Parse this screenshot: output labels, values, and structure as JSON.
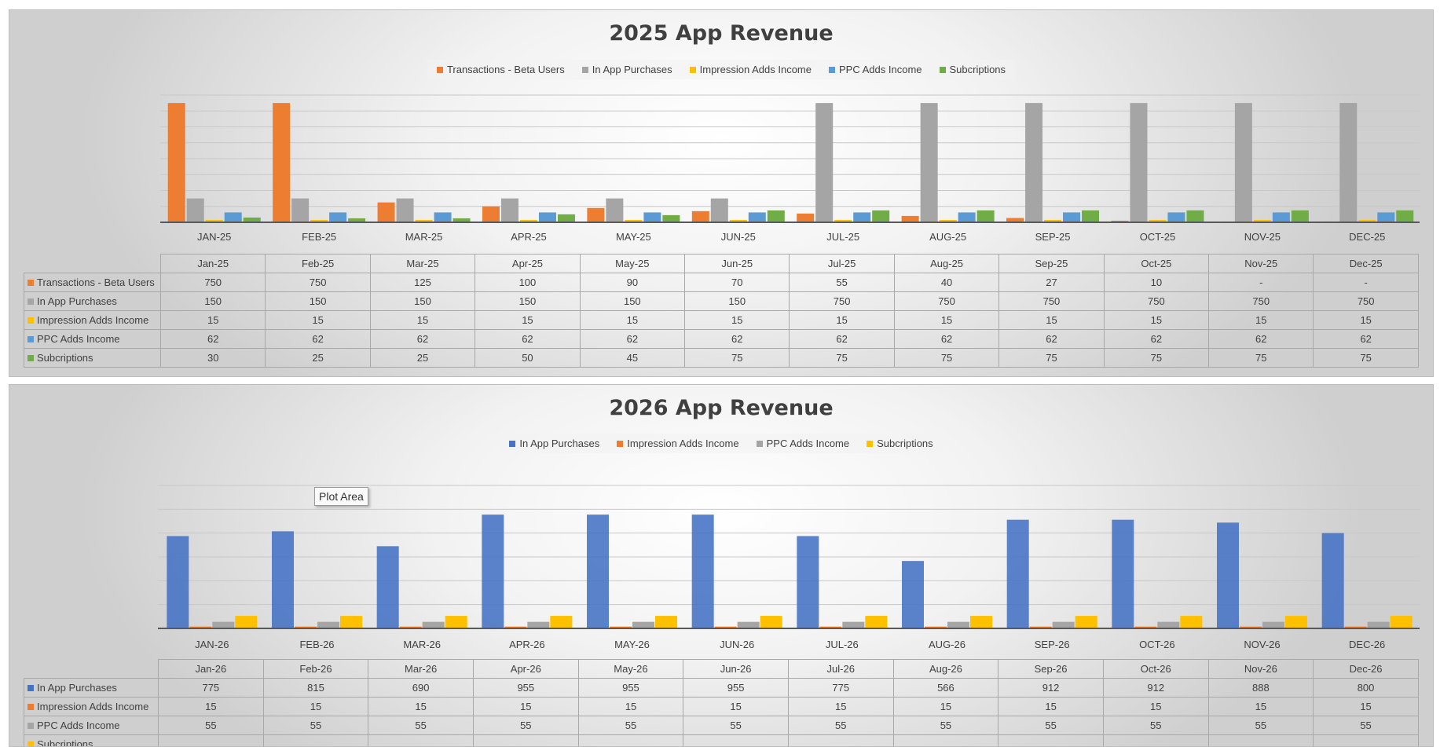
{
  "chart_data": [
    {
      "type": "bar",
      "title": "2025 App Revenue",
      "categories": [
        "JAN-25",
        "FEB-25",
        "MAR-25",
        "APR-25",
        "MAY-25",
        "JUN-25",
        "JUL-25",
        "AUG-25",
        "SEP-25",
        "OCT-25",
        "NOV-25",
        "DEC-25"
      ],
      "table_headers": [
        "Jan-25",
        "Feb-25",
        "Mar-25",
        "Apr-25",
        "May-25",
        "Jun-25",
        "Jul-25",
        "Aug-25",
        "Sep-25",
        "Oct-25",
        "Nov-25",
        "Dec-25"
      ],
      "ylim": [
        0,
        800
      ],
      "grid": true,
      "legend_position": "top",
      "series": [
        {
          "name": "Transactions - Beta Users",
          "color": "#ed7d31",
          "values": [
            750,
            750,
            125,
            100,
            90,
            70,
            55,
            40,
            27,
            10,
            null,
            null
          ],
          "labels": [
            "750",
            "750",
            "125",
            "100",
            "90",
            "70",
            "55",
            "40",
            "27",
            "10",
            "-",
            "-"
          ]
        },
        {
          "name": "In App Purchases",
          "color": "#a5a5a5",
          "values": [
            150,
            150,
            150,
            150,
            150,
            150,
            750,
            750,
            750,
            750,
            750,
            750
          ],
          "labels": [
            "150",
            "150",
            "150",
            "150",
            "150",
            "150",
            "750",
            "750",
            "750",
            "750",
            "750",
            "750"
          ]
        },
        {
          "name": "Impression Adds Income",
          "color": "#ffc000",
          "values": [
            15,
            15,
            15,
            15,
            15,
            15,
            15,
            15,
            15,
            15,
            15,
            15
          ],
          "labels": [
            "15",
            "15",
            "15",
            "15",
            "15",
            "15",
            "15",
            "15",
            "15",
            "15",
            "15",
            "15"
          ]
        },
        {
          "name": "PPC Adds Income",
          "color": "#5b9bd5",
          "values": [
            62,
            62,
            62,
            62,
            62,
            62,
            62,
            62,
            62,
            62,
            62,
            62
          ],
          "labels": [
            "62",
            "62",
            "62",
            "62",
            "62",
            "62",
            "62",
            "62",
            "62",
            "62",
            "62",
            "62"
          ]
        },
        {
          "name": "Subcriptions",
          "color": "#70ad47",
          "values": [
            30,
            25,
            25,
            50,
            45,
            75,
            75,
            75,
            75,
            75,
            75,
            75
          ],
          "labels": [
            "30",
            "25",
            "25",
            "50",
            "45",
            "75",
            "75",
            "75",
            "75",
            "75",
            "75",
            "75"
          ]
        }
      ]
    },
    {
      "type": "bar",
      "title": "2026 App Revenue",
      "categories": [
        "JAN-26",
        "FEB-26",
        "MAR-26",
        "APR-26",
        "MAY-26",
        "JUN-26",
        "JUL-26",
        "AUG-26",
        "SEP-26",
        "OCT-26",
        "NOV-26",
        "DEC-26"
      ],
      "table_headers": [
        "Jan-26",
        "Feb-26",
        "Mar-26",
        "Apr-26",
        "May-26",
        "Jun-26",
        "Jul-26",
        "Aug-26",
        "Sep-26",
        "Oct-26",
        "Nov-26",
        "Dec-26"
      ],
      "ylim": [
        0,
        1200
      ],
      "grid": true,
      "legend_position": "top",
      "series": [
        {
          "name": "In App Purchases",
          "color": "#4472c4",
          "values": [
            775,
            815,
            690,
            955,
            955,
            955,
            775,
            566,
            912,
            912,
            888,
            800
          ],
          "labels": [
            "775",
            "815",
            "690",
            "955",
            "955",
            "955",
            "775",
            "566",
            "912",
            "912",
            "888",
            "800"
          ]
        },
        {
          "name": "Impression Adds Income",
          "color": "#ed7d31",
          "values": [
            15,
            15,
            15,
            15,
            15,
            15,
            15,
            15,
            15,
            15,
            15,
            15
          ],
          "labels": [
            "15",
            "15",
            "15",
            "15",
            "15",
            "15",
            "15",
            "15",
            "15",
            "15",
            "15",
            "15"
          ]
        },
        {
          "name": "PPC Adds Income",
          "color": "#a5a5a5",
          "values": [
            55,
            55,
            55,
            55,
            55,
            55,
            55,
            55,
            55,
            55,
            55,
            55
          ],
          "labels": [
            "55",
            "55",
            "55",
            "55",
            "55",
            "55",
            "55",
            "55",
            "55",
            "55",
            "55",
            "55"
          ]
        },
        {
          "name": "Subcriptions",
          "color": "#ffc000",
          "values": [
            105,
            105,
            105,
            105,
            105,
            105,
            105,
            105,
            105,
            105,
            105,
            105
          ],
          "labels": []
        }
      ]
    }
  ],
  "tooltip": {
    "text": "Plot Area"
  }
}
